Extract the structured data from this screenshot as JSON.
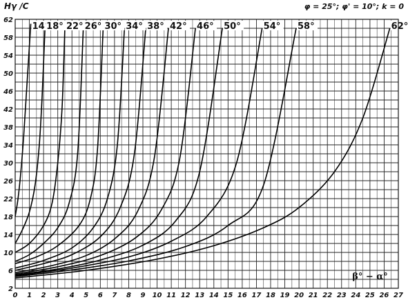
{
  "chart_data": {
    "type": "line",
    "title": "",
    "ylabel": "Hγ /C",
    "xlabel": "β° − α°",
    "params_label": "φ = 25°; φ' = 10°; k = 0",
    "xlim": [
      0,
      27
    ],
    "ylim": [
      2,
      62
    ],
    "x_ticks": [
      0,
      1,
      2,
      3,
      4,
      5,
      6,
      7,
      8,
      9,
      10,
      11,
      12,
      13,
      14,
      15,
      16,
      17,
      18,
      19,
      20,
      21,
      22,
      23,
      24,
      25,
      26,
      27
    ],
    "y_ticks": [
      2,
      6,
      10,
      14,
      18,
      22,
      26,
      30,
      34,
      38,
      42,
      46,
      50,
      54,
      58,
      62
    ],
    "grid": true,
    "series": [
      {
        "name": "14°",
        "x": [
          0,
          0.2,
          0.4,
          0.6,
          0.8,
          1.0,
          1.1
        ],
        "y": [
          18,
          22,
          28,
          36,
          46,
          56,
          61
        ]
      },
      {
        "name": "18°",
        "x": [
          0,
          0.5,
          1.0,
          1.4,
          1.7,
          1.9,
          2.1
        ],
        "y": [
          12,
          15,
          19,
          25,
          34,
          45,
          60
        ]
      },
      {
        "name": "22°",
        "x": [
          0,
          1.0,
          2.0,
          2.6,
          3.0,
          3.3,
          3.5
        ],
        "y": [
          10,
          12,
          16,
          21,
          30,
          42,
          60
        ]
      },
      {
        "name": "26°",
        "x": [
          0,
          1.0,
          2.0,
          3.0,
          3.8,
          4.4,
          4.8
        ],
        "y": [
          8,
          9.5,
          12,
          15.5,
          21,
          32,
          60
        ]
      },
      {
        "name": "30°",
        "x": [
          0,
          1.5,
          3.0,
          4.5,
          5.3,
          5.8,
          6.2
        ],
        "y": [
          7.5,
          9,
          11.5,
          16,
          22,
          33,
          60
        ]
      },
      {
        "name": "34°",
        "x": [
          0,
          2.0,
          4.0,
          5.5,
          6.5,
          7.2,
          7.7
        ],
        "y": [
          6.5,
          8.2,
          11,
          15.5,
          22,
          34,
          60
        ]
      },
      {
        "name": "38°",
        "x": [
          0,
          2.0,
          4.0,
          6.0,
          7.4,
          8.4,
          9.2
        ],
        "y": [
          6,
          7.5,
          9.5,
          13.5,
          20,
          32,
          60
        ]
      },
      {
        "name": "42°",
        "x": [
          0,
          2.5,
          5.0,
          7.0,
          8.6,
          9.8,
          10.8
        ],
        "y": [
          5.5,
          7,
          9.3,
          13,
          19,
          31,
          60
        ]
      },
      {
        "name": "46°",
        "x": [
          0,
          3.0,
          6.0,
          8.5,
          10.3,
          11.6,
          12.7
        ],
        "y": [
          5.2,
          6.8,
          9.3,
          13.3,
          19.5,
          31,
          60
        ]
      },
      {
        "name": "50°",
        "x": [
          0,
          3.0,
          6.0,
          9.0,
          11.3,
          13.0,
          14.6
        ],
        "y": [
          5,
          6.3,
          8.3,
          11.6,
          17,
          28,
          60
        ]
      },
      {
        "name": "54°",
        "x": [
          0,
          4.0,
          8.0,
          11.0,
          13.5,
          15.6,
          17.4
        ],
        "y": [
          4.8,
          6.5,
          9,
          12.5,
          18,
          30,
          60
        ]
      },
      {
        "name": "58°",
        "x": [
          0,
          4.0,
          8.0,
          12.0,
          15.0,
          17.5,
          19.8
        ],
        "y": [
          4.6,
          6.1,
          8.1,
          11.3,
          16,
          25,
          60
        ]
      },
      {
        "name": "62°",
        "x": [
          0,
          5.0,
          10.0,
          14.0,
          17.5,
          20.0,
          22.5,
          24.5,
          26.4
        ],
        "y": [
          4.3,
          6,
          8.5,
          11.5,
          15.5,
          20,
          28,
          40,
          60
        ]
      }
    ]
  }
}
